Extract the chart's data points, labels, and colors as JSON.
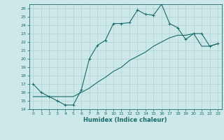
{
  "title": "",
  "xlabel": "Humidex (Indice chaleur)",
  "bg_color": "#cce8e8",
  "grid_color": "#b0d0d0",
  "line_color": "#1a6b6b",
  "xlim": [
    -0.5,
    23.5
  ],
  "ylim": [
    14,
    26.5
  ],
  "xticks": [
    0,
    1,
    2,
    3,
    4,
    5,
    6,
    7,
    8,
    9,
    10,
    11,
    12,
    13,
    14,
    15,
    16,
    17,
    18,
    19,
    20,
    21,
    22,
    23
  ],
  "yticks": [
    14,
    15,
    16,
    17,
    18,
    19,
    20,
    21,
    22,
    23,
    24,
    25,
    26
  ],
  "line1_x": [
    0,
    1,
    2,
    3,
    4,
    5,
    6,
    7,
    8,
    9,
    10,
    11,
    12,
    13,
    14,
    15,
    16,
    17,
    18,
    19,
    20,
    21,
    22,
    23
  ],
  "line1_y": [
    17.0,
    16.0,
    15.5,
    15.0,
    14.5,
    14.5,
    16.3,
    20.0,
    21.6,
    22.2,
    24.2,
    24.2,
    24.3,
    25.8,
    25.3,
    25.2,
    26.5,
    24.2,
    23.7,
    22.3,
    23.0,
    23.0,
    21.5,
    21.8
  ],
  "line2_x": [
    0,
    1,
    2,
    3,
    4,
    5,
    6,
    7,
    8,
    9,
    10,
    11,
    12,
    13,
    14,
    15,
    16,
    17,
    18,
    19,
    20,
    21,
    22,
    23
  ],
  "line2_y": [
    15.5,
    15.5,
    15.5,
    15.5,
    15.5,
    15.5,
    16.0,
    16.5,
    17.2,
    17.8,
    18.5,
    19.0,
    19.8,
    20.3,
    20.8,
    21.5,
    22.0,
    22.5,
    22.8,
    22.8,
    23.0,
    21.5,
    21.5,
    21.8
  ]
}
